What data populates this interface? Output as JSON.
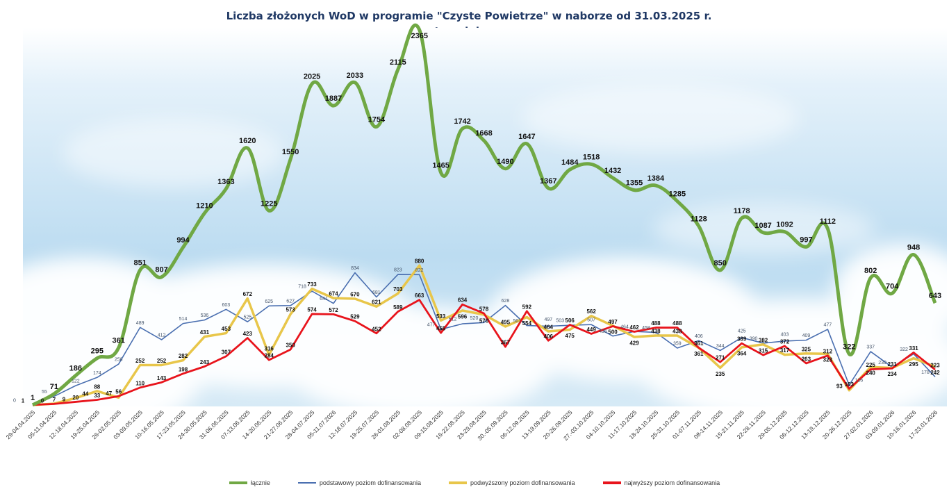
{
  "chart_data": {
    "type": "line",
    "title": "Liczba złożonych WoD w programie  \"Czyste Powietrze\" w naborze  od 31.03.2025 r.",
    "subtitle": "tygodniowo",
    "xlabel": "",
    "ylabel": "",
    "ylim": [
      0,
      2400
    ],
    "grid": false,
    "legend_position": "bottom",
    "categories": [
      "29-04.04.2025",
      "05-11.04.2025",
      "12-18.04.2025",
      "19-25.04.2025",
      "26-02.05.2025",
      "03-09.05.2025",
      "10-16.05.2025",
      "17-23.05.2025",
      "24-30.05.2025",
      "31-06.06.2025",
      "07-13.06.2025",
      "14-20.06.2025",
      "21-27.06.2025",
      "28-04.07.2025",
      "05-11.07.2026",
      "12-18.07.2025",
      "19-25.07.2025",
      "26-01.08.2025",
      "02-08.08.2025",
      "09-15.08.2025",
      "16-22.08.2025",
      "23-29.08.2025",
      "30.-05.09.2025",
      "06-12.09.2025",
      "13-19.09.2025",
      "20-26.09.2025",
      "27.-03.10.2025",
      "04-10.10.2025",
      "11-17.10.2025",
      "18-24.10.2025",
      "25-31.10.2025",
      "01-07.11.2025",
      "08-14.11.2025",
      "15-21.11.2025",
      "22-28.11.2025",
      "29-05.12.2025",
      "06-12.12.2025",
      "13-19.12.2025",
      "20-26.12.2025",
      "27-02.01.2026",
      "03-09.01.2026",
      "10-16.01.2026",
      "17-23.01.2026"
    ],
    "series": [
      {
        "name": "łącznie",
        "color": "#70a844",
        "values": [
          1,
          71,
          186,
          295,
          361,
          851,
          807,
          994,
          1210,
          1363,
          1620,
          1225,
          1550,
          2025,
          1887,
          2033,
          1754,
          2115,
          2365,
          1465,
          1742,
          1668,
          1490,
          1647,
          1367,
          1484,
          1518,
          1432,
          1355,
          1384,
          1285,
          1128,
          850,
          1178,
          1087,
          1092,
          997,
          1112,
          322,
          802,
          704,
          948,
          643
        ]
      },
      {
        "name": "podstawowy poziom dofinansowania",
        "color": "#4a6fb0",
        "values": [
          0,
          55,
          122,
          174,
          258,
          489,
          412,
          514,
          536,
          603,
          525,
          625,
          627,
          718,
          641,
          834,
          681,
          823,
          822,
          477,
          512,
          520,
          628,
          501,
          497,
          503,
          507,
          435,
          464,
          458,
          359,
          406,
          344,
          425,
          390,
          403,
          409,
          477,
          126,
          337,
          239,
          322,
          178
        ]
      },
      {
        "name": "podwyższony poziom dofinansowania",
        "color": "#e8c64a",
        "values": [
          0,
          9,
          44,
          88,
          47,
          252,
          252,
          282,
          431,
          453,
          672,
          316,
          573,
          733,
          674,
          670,
          621,
          703,
          880,
          533,
          596,
          570,
          495,
          554,
          464,
          475,
          562,
          500,
          429,
          438,
          438,
          361,
          235,
          364,
          382,
          317,
          325,
          323,
          93,
          240,
          234,
          295,
          242
        ]
      },
      {
        "name": "najwyższy poziom dofinansowania",
        "color": "#e8141c",
        "values": [
          1,
          7,
          20,
          33,
          56,
          110,
          143,
          198,
          243,
          307,
          423,
          284,
          350,
          574,
          572,
          529,
          452,
          589,
          663,
          455,
          634,
          578,
          367,
          592,
          406,
          506,
          449,
          497,
          462,
          488,
          488,
          361,
          271,
          389,
          315,
          372,
          263,
          312,
          103,
          225,
          231,
          331,
          223
        ]
      }
    ]
  }
}
